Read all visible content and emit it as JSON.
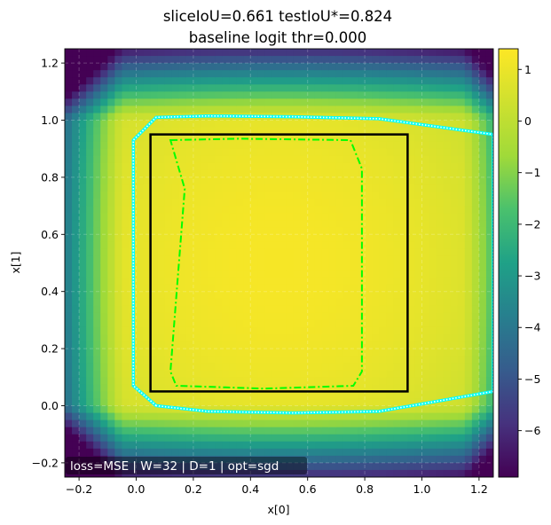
{
  "chart_data": {
    "type": "heatmap",
    "title_line1": "sliceIoU=0.661  testIoU*=0.824",
    "title_line2": "baseline logit thr=0.000",
    "xlabel": "x[0]",
    "ylabel": "x[1]",
    "xlim": [
      -0.25,
      1.25
    ],
    "ylim": [
      -0.25,
      1.25
    ],
    "xticks": [
      -0.2,
      0.0,
      0.2,
      0.4,
      0.6,
      0.8,
      1.0,
      1.2
    ],
    "yticks": [
      -0.2,
      0.0,
      0.2,
      0.4,
      0.6,
      0.8,
      1.0,
      1.2
    ],
    "xtick_labels": [
      "−0.2",
      "0.0",
      "0.2",
      "0.4",
      "0.6",
      "0.8",
      "1.0",
      "1.2"
    ],
    "ytick_labels": [
      "−0.2",
      "0.0",
      "0.2",
      "0.4",
      "0.6",
      "0.8",
      "1.0",
      "1.2"
    ],
    "grid": true,
    "colormap": "viridis",
    "colorbar": {
      "vmin": -6.9,
      "vmax": 1.4,
      "ticks": [
        1,
        0,
        -1,
        -2,
        -3,
        -4,
        -5,
        -6
      ],
      "tick_labels": [
        "1",
        "0",
        "−1",
        "−2",
        "−3",
        "−4",
        "−5",
        "−6"
      ]
    },
    "true_region_box": {
      "x0": 0.05,
      "x1": 0.95,
      "y0": 0.05,
      "y1": 0.95,
      "color": "#000000"
    },
    "baseline_contour": {
      "color": "#00ffff",
      "points": [
        [
          0.07,
          0.0
        ],
        [
          -0.01,
          0.07
        ],
        [
          -0.01,
          0.93
        ],
        [
          0.07,
          1.01
        ],
        [
          0.25,
          1.015
        ],
        [
          0.55,
          1.012
        ],
        [
          0.85,
          1.005
        ],
        [
          1.25,
          0.95
        ],
        [
          1.25,
          0.05
        ],
        [
          0.85,
          -0.02
        ],
        [
          0.55,
          -0.025
        ],
        [
          0.25,
          -0.02
        ]
      ]
    },
    "model_contour": {
      "color": "#00ff00",
      "points": [
        [
          0.12,
          0.93
        ],
        [
          0.36,
          0.935
        ],
        [
          0.75,
          0.93
        ],
        [
          0.79,
          0.83
        ],
        [
          0.79,
          0.12
        ],
        [
          0.76,
          0.07
        ],
        [
          0.45,
          0.06
        ],
        [
          0.14,
          0.07
        ],
        [
          0.12,
          0.12
        ],
        [
          0.17,
          0.76
        ]
      ]
    },
    "annotation": "loss=MSE | W=32 | D=1 | opt=sgd"
  }
}
